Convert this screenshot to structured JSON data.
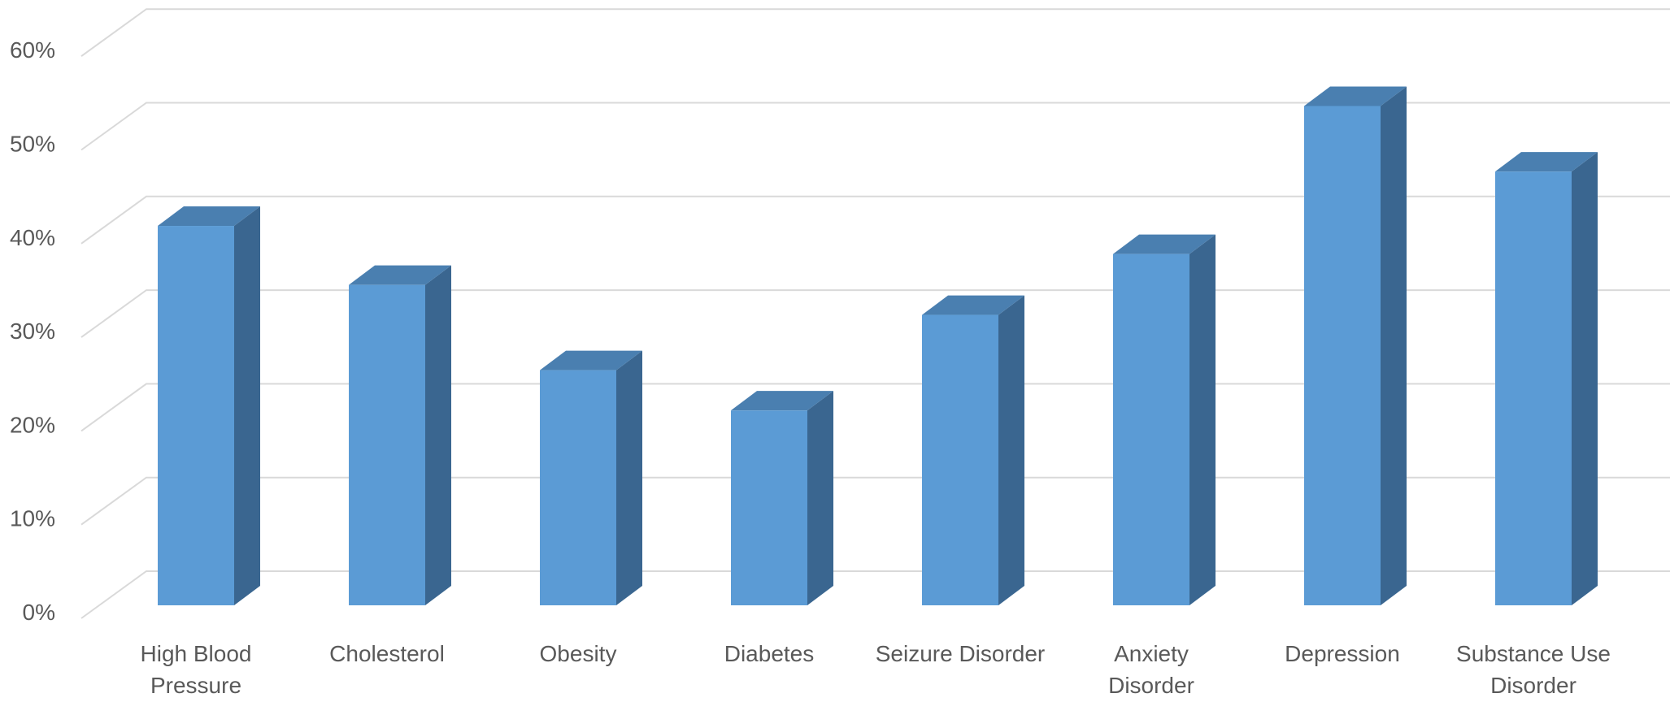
{
  "colors": {
    "bar_front": "#5b9bd5",
    "bar_top": "#4a7fb0",
    "bar_side": "#3a6690",
    "gridline": "#d9d9d9",
    "text": "#595959"
  },
  "chart_data": {
    "type": "bar",
    "style": "3d-column",
    "title": "",
    "xlabel": "",
    "ylabel": "",
    "categories": [
      [
        "High Blood",
        "Pressure"
      ],
      [
        "Cholesterol"
      ],
      [
        "Obesity"
      ],
      [
        "Diabetes"
      ],
      [
        "Seizure Disorder"
      ],
      [
        "Anxiety",
        "Disorder"
      ],
      [
        "Depression"
      ],
      [
        "Substance Use",
        "Disorder"
      ]
    ],
    "values": [
      40.5,
      34.2,
      25.1,
      20.8,
      31.0,
      37.5,
      53.3,
      46.3
    ],
    "value_unit": "%",
    "ylim": [
      0,
      60
    ],
    "yticks": [
      0,
      10,
      20,
      30,
      40,
      50,
      60
    ],
    "ytick_labels": [
      "0%",
      "10%",
      "20%",
      "30%",
      "40%",
      "50%",
      "60%"
    ],
    "grid": true,
    "legend": "none"
  }
}
